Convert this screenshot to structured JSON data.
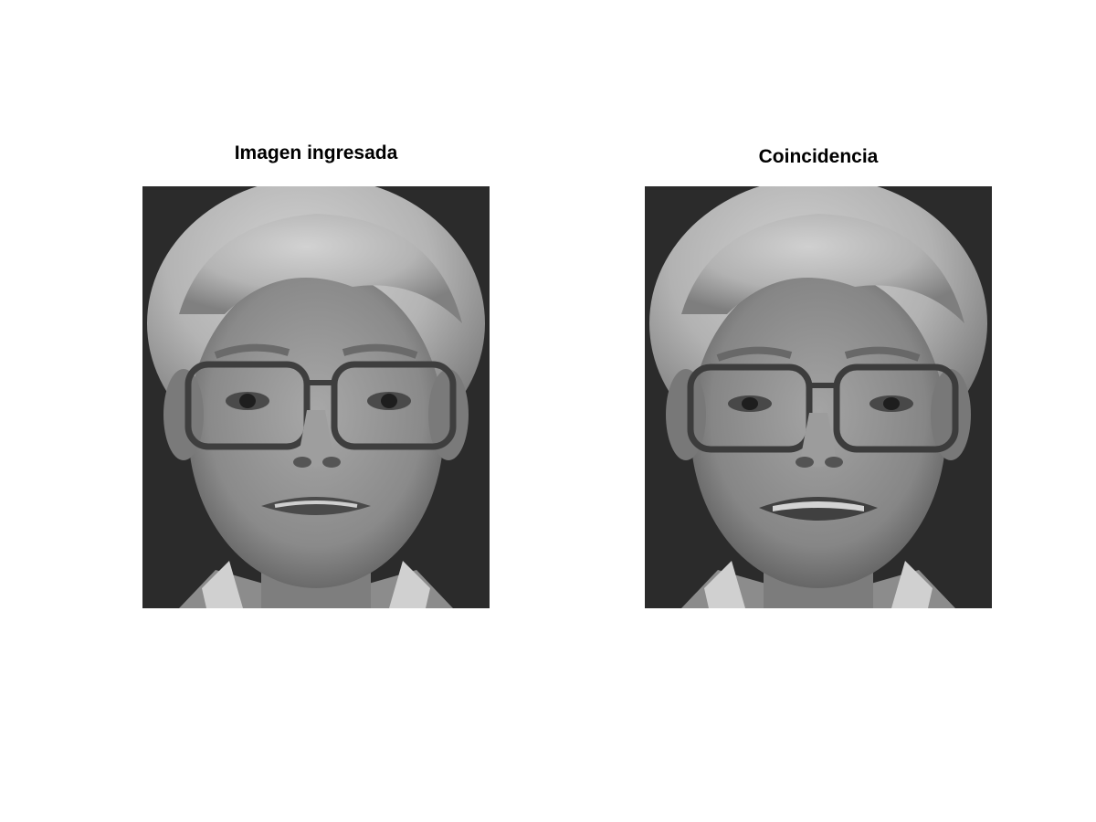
{
  "figure": {
    "panels": [
      {
        "title": "Imagen ingresada",
        "image": "grayscale-face-photo",
        "colors": {
          "background": "#2a2a2a",
          "skin": "#9a9a9a",
          "hair": "#c4c4c4"
        }
      },
      {
        "title": "Coincidencia",
        "image": "grayscale-face-photo",
        "colors": {
          "background": "#2a2a2a",
          "skin": "#9a9a9a",
          "hair": "#c4c4c4"
        }
      }
    ]
  }
}
